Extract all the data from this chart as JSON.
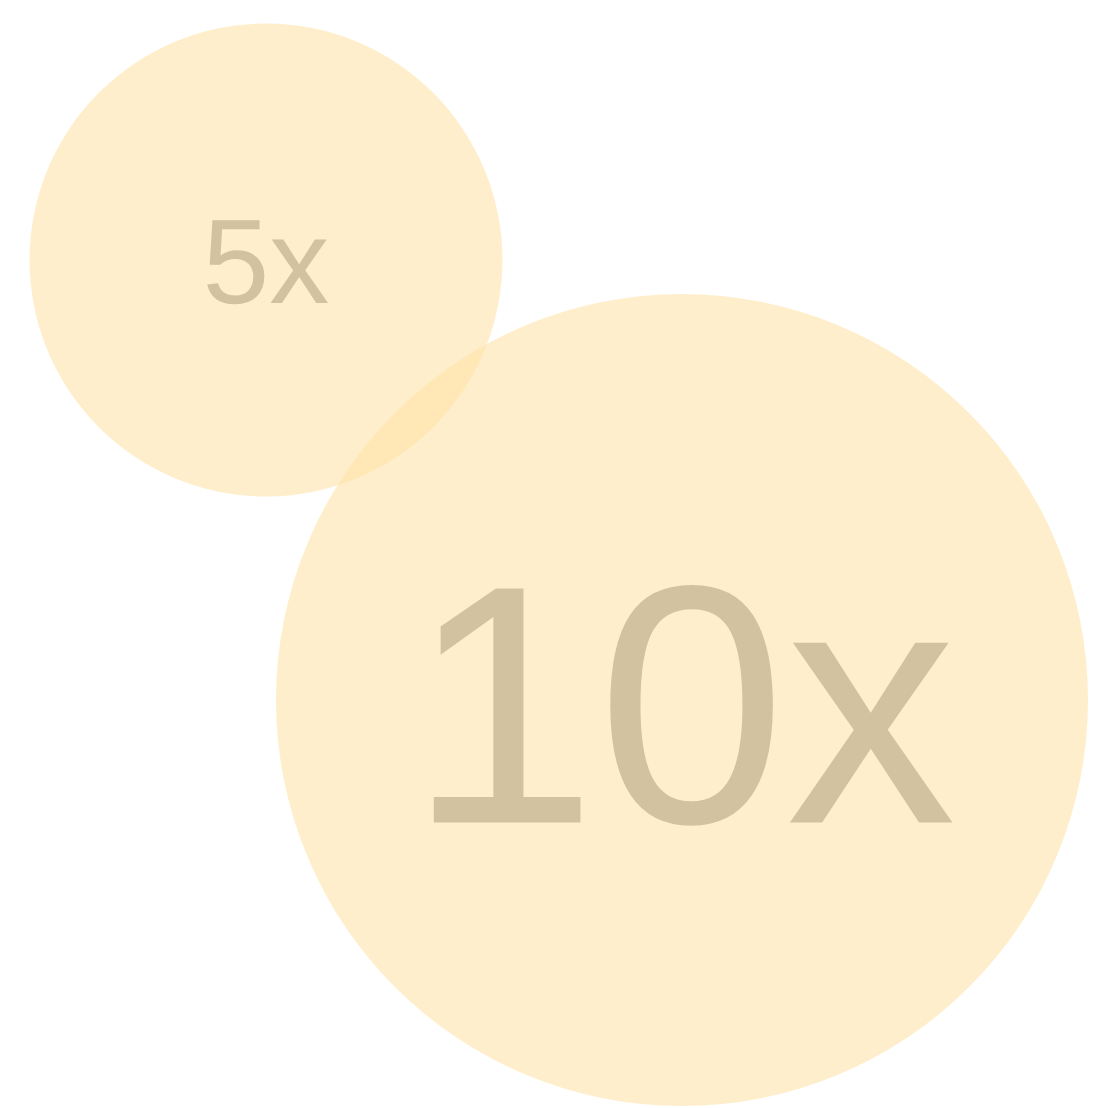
{
  "chart_data": {
    "type": "other",
    "categories": [
      null,
      null
    ],
    "values": [
      5,
      10
    ],
    "value_labels": [
      "5x",
      "10x"
    ],
    "color": "#ffe2a8"
  }
}
